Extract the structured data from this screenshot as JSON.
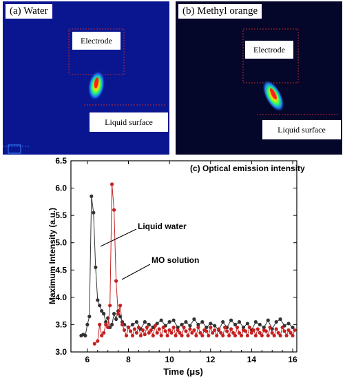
{
  "panel_a": {
    "label": "(a)  Water",
    "electrode_label": "Electrode",
    "surface_label": "Liquid surface",
    "background": "#0a1690"
  },
  "panel_b": {
    "label": "(b)  Methyl orange",
    "electrode_label": "Electrode",
    "surface_label": "Liquid surface",
    "background": "#04062a"
  },
  "chart_data": {
    "type": "line",
    "title": "(c) Optical emission intensity",
    "xlabel": "Time (μs)",
    "ylabel": "Maximum Intensity (a.u.)",
    "xlim": [
      5.2,
      16.2
    ],
    "ylim": [
      3.0,
      6.5
    ],
    "x_ticks": [
      "6",
      "8",
      "10",
      "12",
      "14",
      "16"
    ],
    "y_ticks": [
      "3.0",
      "3.5",
      "4.0",
      "4.5",
      "5.0",
      "5.5",
      "6.0",
      "6.5"
    ],
    "grid": false,
    "annotations": [
      "Liquid water",
      "MO solution"
    ],
    "series": [
      {
        "name": "Liquid water",
        "color": "#333333",
        "x": [
          5.7,
          5.8,
          5.9,
          6.0,
          6.1,
          6.2,
          6.3,
          6.4,
          6.5,
          6.6,
          6.7,
          6.8,
          6.9,
          7.0,
          7.1,
          7.2,
          7.3,
          7.4,
          7.5,
          7.6,
          7.7,
          7.8,
          8.0,
          8.2,
          8.4,
          8.6,
          8.8,
          9.0,
          9.2,
          9.4,
          9.6,
          9.8,
          10.0,
          10.2,
          10.4,
          10.6,
          10.8,
          11.0,
          11.2,
          11.4,
          11.6,
          11.8,
          12.0,
          12.2,
          12.4,
          12.6,
          12.8,
          13.0,
          13.2,
          13.4,
          13.6,
          13.8,
          14.0,
          14.2,
          14.4,
          14.6,
          14.8,
          15.0,
          15.2,
          15.4,
          15.6,
          15.8,
          16.0
        ],
        "values": [
          3.3,
          3.32,
          3.3,
          3.5,
          3.65,
          5.85,
          5.55,
          4.55,
          3.95,
          3.85,
          3.75,
          3.7,
          3.55,
          3.62,
          3.45,
          3.5,
          3.7,
          3.6,
          3.75,
          3.65,
          3.55,
          3.5,
          3.45,
          3.5,
          3.55,
          3.42,
          3.55,
          3.5,
          3.45,
          3.52,
          3.58,
          3.48,
          3.55,
          3.58,
          3.45,
          3.5,
          3.55,
          3.48,
          3.6,
          3.5,
          3.55,
          3.45,
          3.52,
          3.48,
          3.4,
          3.55,
          3.45,
          3.58,
          3.5,
          3.55,
          3.45,
          3.52,
          3.4,
          3.55,
          3.5,
          3.45,
          3.58,
          3.42,
          3.55,
          3.6,
          3.48,
          3.52,
          3.45
        ]
      },
      {
        "name": "MO solution",
        "color": "#c62020",
        "x": [
          6.35,
          6.5,
          6.6,
          6.7,
          6.8,
          6.9,
          7.0,
          7.1,
          7.2,
          7.3,
          7.4,
          7.5,
          7.6,
          7.7,
          7.8,
          7.9,
          8.0,
          8.1,
          8.2,
          8.3,
          8.4,
          8.5,
          8.6,
          8.7,
          8.8,
          8.9,
          9.0,
          9.1,
          9.2,
          9.3,
          9.4,
          9.5,
          9.6,
          9.7,
          9.8,
          9.9,
          10.0,
          10.1,
          10.2,
          10.3,
          10.4,
          10.5,
          10.6,
          10.7,
          10.8,
          10.9,
          11.0,
          11.1,
          11.2,
          11.3,
          11.4,
          11.5,
          11.6,
          11.7,
          11.8,
          11.9,
          12.0,
          12.1,
          12.2,
          12.3,
          12.4,
          12.5,
          12.6,
          12.7,
          12.8,
          12.9,
          13.0,
          13.1,
          13.2,
          13.3,
          13.4,
          13.5,
          13.6,
          13.7,
          13.8,
          13.9,
          14.0,
          14.1,
          14.2,
          14.3,
          14.4,
          14.5,
          14.6,
          14.7,
          14.8,
          14.9,
          15.0,
          15.1,
          15.2,
          15.3,
          15.4,
          15.5,
          15.6,
          15.7,
          15.8,
          15.9,
          16.0,
          16.1
        ],
        "values": [
          3.15,
          3.2,
          3.5,
          3.3,
          3.35,
          3.5,
          3.45,
          3.85,
          6.07,
          5.6,
          4.3,
          3.7,
          3.85,
          3.5,
          3.4,
          3.3,
          3.45,
          3.38,
          3.3,
          3.42,
          3.35,
          3.45,
          3.3,
          3.4,
          3.32,
          3.45,
          3.35,
          3.4,
          3.3,
          3.48,
          3.35,
          3.42,
          3.3,
          3.45,
          3.38,
          3.3,
          3.4,
          3.35,
          3.45,
          3.3,
          3.4,
          3.35,
          3.3,
          3.45,
          3.38,
          3.3,
          3.42,
          3.35,
          3.4,
          3.3,
          3.45,
          3.35,
          3.3,
          3.4,
          3.38,
          3.3,
          3.45,
          3.35,
          3.4,
          3.3,
          3.42,
          3.35,
          3.3,
          3.45,
          3.38,
          3.3,
          3.42,
          3.35,
          3.3,
          3.45,
          3.35,
          3.3,
          3.4,
          3.38,
          3.3,
          3.45,
          3.35,
          3.4,
          3.3,
          3.42,
          3.35,
          3.3,
          3.4,
          3.38,
          3.3,
          3.45,
          3.35,
          3.3,
          3.42,
          3.35,
          3.3,
          3.45,
          3.38,
          3.3,
          3.4,
          3.35,
          3.3,
          3.4
        ]
      }
    ]
  }
}
